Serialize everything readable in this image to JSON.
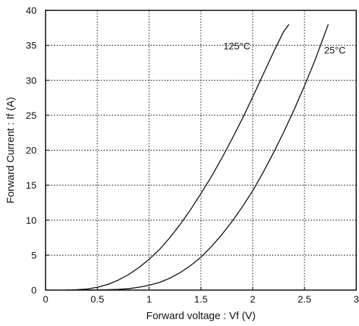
{
  "chart_data": {
    "type": "line",
    "title": "",
    "xlabel": "Forward voltage : Vf (V)",
    "ylabel": "Forward Current : If (A)",
    "xlim": [
      0,
      3
    ],
    "ylim": [
      0,
      40
    ],
    "xticks": [
      "0",
      "0.5",
      "1",
      "1.5",
      "2",
      "2.5",
      "3"
    ],
    "yticks": [
      "0",
      "5",
      "10",
      "15",
      "20",
      "25",
      "30",
      "35",
      "40"
    ],
    "grid": true,
    "series": [
      {
        "name": "125°C",
        "x": [
          0.2,
          0.3,
          0.4,
          0.5,
          0.6,
          0.7,
          0.8,
          0.9,
          1.0,
          1.1,
          1.2,
          1.3,
          1.4,
          1.5,
          1.6,
          1.7,
          1.8,
          1.9,
          2.0,
          2.1,
          2.2,
          2.3,
          2.35
        ],
        "y": [
          0.0,
          0.05,
          0.15,
          0.4,
          0.8,
          1.4,
          2.2,
          3.2,
          4.4,
          5.8,
          7.5,
          9.4,
          11.5,
          13.8,
          16.2,
          18.8,
          21.6,
          24.5,
          27.6,
          30.8,
          34.0,
          37.0,
          38.0
        ]
      },
      {
        "name": "25°C",
        "x": [
          0.4,
          0.5,
          0.6,
          0.7,
          0.8,
          0.9,
          1.0,
          1.1,
          1.2,
          1.3,
          1.4,
          1.5,
          1.6,
          1.7,
          1.8,
          1.9,
          2.0,
          2.1,
          2.2,
          2.3,
          2.4,
          2.5,
          2.6,
          2.7,
          2.73
        ],
        "y": [
          0.0,
          0.02,
          0.05,
          0.1,
          0.2,
          0.4,
          0.7,
          1.1,
          1.7,
          2.5,
          3.5,
          4.7,
          6.2,
          7.9,
          9.8,
          11.9,
          14.2,
          16.8,
          19.6,
          22.6,
          25.8,
          29.2,
          32.8,
          36.8,
          38.0
        ]
      }
    ]
  }
}
